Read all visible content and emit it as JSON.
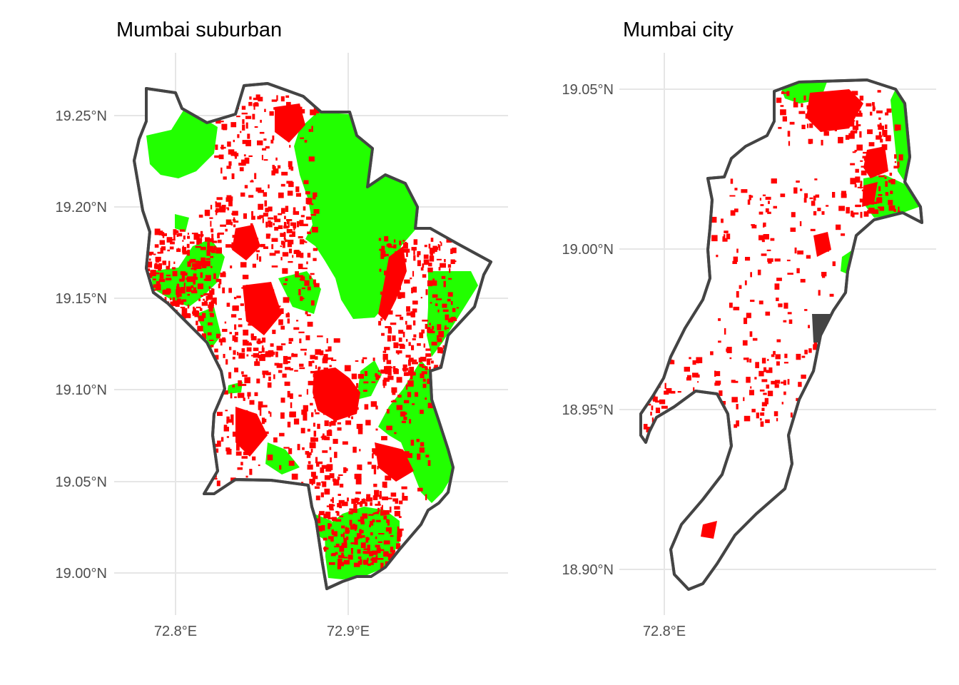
{
  "colors": {
    "green_space": "#22ff00",
    "built_up": "#ff0000",
    "boundary": "#444444",
    "grid": "#e6e6e6",
    "tick_text": "#4d4d4d"
  },
  "panels": [
    {
      "title": "Mumbai suburban",
      "lat_ticks": [
        "19.25°N",
        "19.20°N",
        "19.15°N",
        "19.10°N",
        "19.05°N",
        "19.00°N"
      ],
      "lon_ticks": [
        "72.8°E",
        "72.9°E"
      ]
    },
    {
      "title": "Mumbai city",
      "lat_ticks": [
        "19.05°N",
        "19.00°N",
        "18.95°N",
        "18.90°N"
      ],
      "lon_ticks": [
        "72.8°E"
      ]
    }
  ]
}
